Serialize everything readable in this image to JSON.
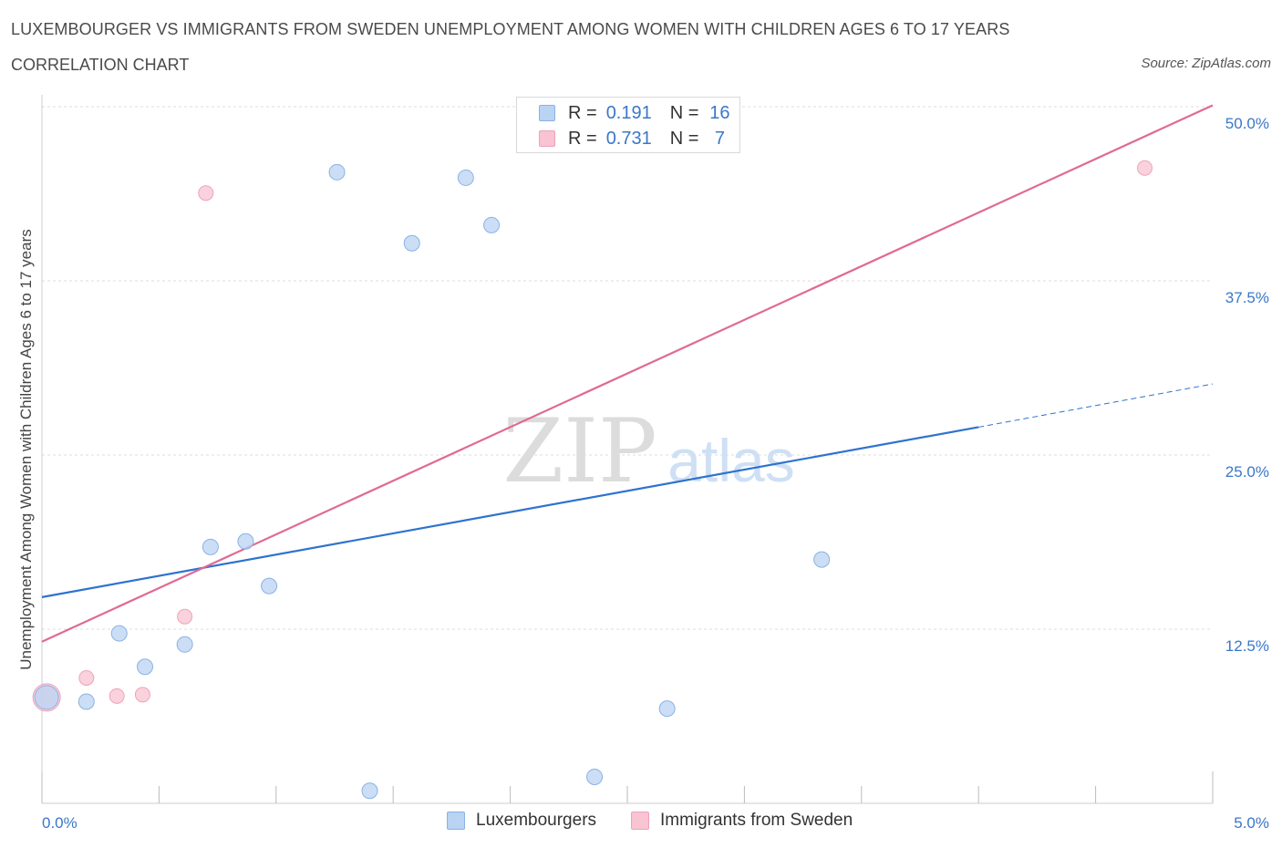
{
  "header": {
    "title": "LUXEMBOURGER VS IMMIGRANTS FROM SWEDEN UNEMPLOYMENT AMONG WOMEN WITH CHILDREN AGES 6 TO 17 YEARS",
    "subtitle": "CORRELATION CHART",
    "source": "Source: ZipAtlas.com"
  },
  "legend_stats": [
    {
      "r_label": "R =",
      "r_value": "0.191",
      "n_label": "N =",
      "n_value": "16"
    },
    {
      "r_label": "R =",
      "r_value": "0.731",
      "n_label": "N =",
      "n_value": "7"
    }
  ],
  "watermark": {
    "zip": "ZIP",
    "atlas": "atlas"
  },
  "colors": {
    "blue_fill": "#b9d3f3",
    "blue_stroke": "#8ab2e4",
    "blue_line": "#2e73cf",
    "pink_fill": "#f8c3d2",
    "pink_stroke": "#efa2b9",
    "pink_line": "#e06a94",
    "tick_label": "#3a77c8",
    "grid": "#dcdcdc"
  },
  "chart_data": {
    "type": "scatter",
    "title": "LUXEMBOURGER VS IMMIGRANTS FROM SWEDEN UNEMPLOYMENT AMONG WOMEN WITH CHILDREN AGES 6 TO 17 YEARS",
    "xlabel": "",
    "ylabel": "Unemployment Among Women with Children Ages 6 to 17 years",
    "xlim": [
      0,
      5
    ],
    "ylim": [
      0,
      50
    ],
    "x_tick_labels": [
      "0.0%",
      "5.0%"
    ],
    "y_ticks": [
      12.5,
      25.0,
      37.5,
      50.0
    ],
    "y_tick_labels": [
      "12.5%",
      "25.0%",
      "37.5%",
      "50.0%"
    ],
    "grid": true,
    "series": [
      {
        "name": "Luxembourgers",
        "points": [
          {
            "x": 0.02,
            "y": 7.6
          },
          {
            "x": 0.19,
            "y": 7.3
          },
          {
            "x": 0.33,
            "y": 12.2
          },
          {
            "x": 0.44,
            "y": 9.8
          },
          {
            "x": 0.61,
            "y": 11.4
          },
          {
            "x": 0.72,
            "y": 18.4
          },
          {
            "x": 0.87,
            "y": 18.8
          },
          {
            "x": 0.97,
            "y": 15.6
          },
          {
            "x": 1.26,
            "y": 45.3
          },
          {
            "x": 1.4,
            "y": 0.9
          },
          {
            "x": 1.58,
            "y": 40.2
          },
          {
            "x": 1.81,
            "y": 44.9
          },
          {
            "x": 1.92,
            "y": 41.5
          },
          {
            "x": 2.36,
            "y": 1.9
          },
          {
            "x": 2.67,
            "y": 6.8
          },
          {
            "x": 3.33,
            "y": 17.5
          }
        ],
        "trend": {
          "x0": 0.0,
          "y0": 14.8,
          "x1": 4.0,
          "y1": 27.0,
          "dashed_to_x": 5.0,
          "dashed_to_y": 30.1
        }
      },
      {
        "name": "Immigrants from Sweden",
        "points": [
          {
            "x": 0.02,
            "y": 7.6
          },
          {
            "x": 0.19,
            "y": 9.0
          },
          {
            "x": 0.32,
            "y": 7.7
          },
          {
            "x": 0.43,
            "y": 7.8
          },
          {
            "x": 0.61,
            "y": 13.4
          },
          {
            "x": 0.7,
            "y": 43.8
          },
          {
            "x": 4.71,
            "y": 45.6
          }
        ],
        "trend": {
          "x0": 0.0,
          "y0": 11.6,
          "x1": 5.0,
          "y1": 50.1
        }
      }
    ]
  },
  "bottom_legend": [
    {
      "label": "Luxembourgers"
    },
    {
      "label": "Immigrants from Sweden"
    }
  ]
}
